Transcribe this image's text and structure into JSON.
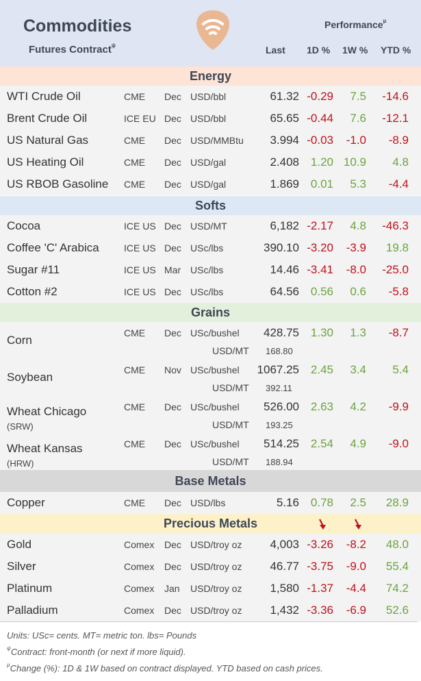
{
  "header": {
    "title": "Commodities",
    "subtitle": "Futures Contract",
    "subtitle_mark": "ψ",
    "performance_label": "Performance",
    "performance_mark": "µ",
    "col_last": "Last",
    "col_1d": "1D %",
    "col_1w": "1W %",
    "col_ytd": "YTD %"
  },
  "sections": {
    "energy": "Energy",
    "softs": "Softs",
    "grains": "Grains",
    "base_metals": "Base Metals",
    "precious_metals": "Precious Metals"
  },
  "colors": {
    "header_bg": "#dfe5f3",
    "energy_bg": "#fde4d6",
    "softs_bg": "#dce8f3",
    "grains_bg": "#e2f0dc",
    "base_metals_bg": "#d8d8d8",
    "precious_metals_bg": "#fdf1c9",
    "positive": "#6aa43e",
    "negative": "#c0111a",
    "logo": "#eab793"
  },
  "energy": [
    {
      "name": "WTI Crude Oil",
      "exchange": "CME",
      "month": "Dec",
      "unit": "USD/bbl",
      "last": "61.32",
      "d1": "-0.29",
      "w1": "7.5",
      "ytd": "-14.6"
    },
    {
      "name": "Brent Crude Oil",
      "exchange": "ICE EU",
      "month": "Dec",
      "unit": "USD/bbl",
      "last": "65.65",
      "d1": "-0.44",
      "w1": "7.6",
      "ytd": "-12.1"
    },
    {
      "name": "US Natural Gas",
      "exchange": "CME",
      "month": "Dec",
      "unit": "USD/MMBtu",
      "last": "3.994",
      "d1": "-0.03",
      "w1": "-1.0",
      "ytd": "-8.9"
    },
    {
      "name": "US Heating Oil",
      "exchange": "CME",
      "month": "Dec",
      "unit": "USD/gal",
      "last": "2.408",
      "d1": "1.20",
      "w1": "10.9",
      "ytd": "4.8"
    },
    {
      "name": "US RBOB Gasoline",
      "exchange": "CME",
      "month": "Dec",
      "unit": "USD/gal",
      "last": "1.869",
      "d1": "0.01",
      "w1": "5.3",
      "ytd": "-4.4"
    }
  ],
  "softs": [
    {
      "name": "Cocoa",
      "exchange": "ICE US",
      "month": "Dec",
      "unit": "USD/MT",
      "last": "6,182",
      "d1": "-2.17",
      "w1": "4.8",
      "ytd": "-46.3"
    },
    {
      "name": "Coffee 'C' Arabica",
      "exchange": "ICE US",
      "month": "Dec",
      "unit": "USc/lbs",
      "last": "390.10",
      "d1": "-3.20",
      "w1": "-3.9",
      "ytd": "19.8"
    },
    {
      "name": "Sugar #11",
      "exchange": "ICE US",
      "month": "Mar",
      "unit": "USc/lbs",
      "last": "14.46",
      "d1": "-3.41",
      "w1": "-8.0",
      "ytd": "-25.0"
    },
    {
      "name": "Cotton #2",
      "exchange": "ICE US",
      "month": "Dec",
      "unit": "USc/lbs",
      "last": "64.56",
      "d1": "0.56",
      "w1": "0.6",
      "ytd": "-5.8"
    }
  ],
  "grains": [
    {
      "name": "Corn",
      "sub": "",
      "exchange": "CME",
      "month": "Dec",
      "unit": "USc/bushel",
      "last": "428.75",
      "unit2": "USD/MT",
      "last2": "168.80",
      "d1": "1.30",
      "w1": "1.3",
      "ytd": "-8.7"
    },
    {
      "name": "Soybean",
      "sub": "",
      "exchange": "CME",
      "month": "Nov",
      "unit": "USc/bushel",
      "last": "1067.25",
      "unit2": "USD/MT",
      "last2": "392.11",
      "d1": "2.45",
      "w1": "3.4",
      "ytd": "5.4"
    },
    {
      "name": "Wheat Chicago",
      "sub": "(SRW)",
      "exchange": "CME",
      "month": "Dec",
      "unit": "USc/bushel",
      "last": "526.00",
      "unit2": "USD/MT",
      "last2": "193.25",
      "d1": "2.63",
      "w1": "4.2",
      "ytd": "-9.9"
    },
    {
      "name": "Wheat Kansas",
      "sub": "(HRW)",
      "exchange": "CME",
      "month": "Dec",
      "unit": "USc/bushel",
      "last": "514.25",
      "unit2": "USD/MT",
      "last2": "188.94",
      "d1": "2.54",
      "w1": "4.9",
      "ytd": "-9.0"
    }
  ],
  "base_metals": [
    {
      "name": "Copper",
      "exchange": "CME",
      "month": "Dec",
      "unit": "USD/lbs",
      "last": "5.16",
      "d1": "0.78",
      "w1": "2.5",
      "ytd": "28.9"
    }
  ],
  "precious_metals": [
    {
      "name": "Gold",
      "exchange": "Comex",
      "month": "Dec",
      "unit": "USD/troy oz",
      "last": "4,003",
      "d1": "-3.26",
      "w1": "-8.2",
      "ytd": "48.0"
    },
    {
      "name": "Silver",
      "exchange": "Comex",
      "month": "Dec",
      "unit": "USD/troy oz",
      "last": "46.77",
      "d1": "-3.75",
      "w1": "-9.0",
      "ytd": "55.4"
    },
    {
      "name": "Platinum",
      "exchange": "Comex",
      "month": "Jan",
      "unit": "USD/troy oz",
      "last": "1,580",
      "d1": "-1.37",
      "w1": "-4.4",
      "ytd": "74.2"
    },
    {
      "name": "Palladium",
      "exchange": "Comex",
      "month": "Dec",
      "unit": "USD/troy oz",
      "last": "1,432",
      "d1": "-3.36",
      "w1": "-6.9",
      "ytd": "52.6"
    }
  ],
  "notes": {
    "units": "Units: USc= cents.  MT= metric ton.  lbs= Pounds",
    "contract_mark": "ψ",
    "contract": "Contract: front-month (or next if more liquid).",
    "change_mark": "µ",
    "change": "Change (%): 1D & 1W based on contract displayed. YTD based on cash prices."
  }
}
